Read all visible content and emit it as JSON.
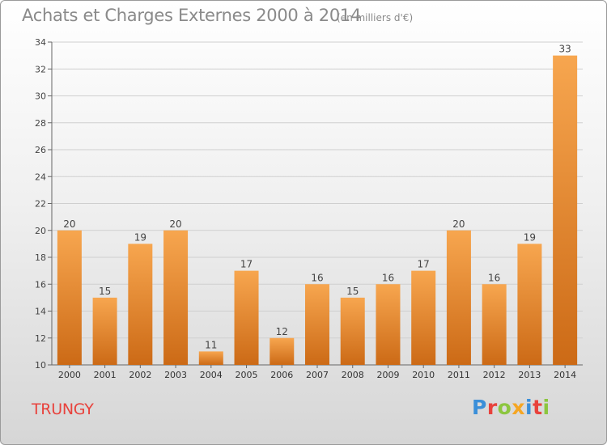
{
  "header": {
    "title": "Achats et Charges Externes 2000 à 2014",
    "subtitle": "(en milliers d'€)"
  },
  "commune": "TRUNGY",
  "logo": {
    "text": "Proxiti"
  },
  "colors": {
    "bar_top": "#f5a04a",
    "bar_bottom": "#cf6d18",
    "label": "#444444",
    "grid": "#d0d0d0"
  },
  "chart_data": {
    "type": "bar",
    "title": "Achats et Charges Externes 2000 à 2014",
    "subtitle": "(en milliers d'€)",
    "categories": [
      "2000",
      "2001",
      "2002",
      "2003",
      "2004",
      "2005",
      "2006",
      "2007",
      "2008",
      "2009",
      "2010",
      "2011",
      "2012",
      "2013",
      "2014"
    ],
    "values": [
      20,
      15,
      19,
      20,
      11,
      17,
      12,
      16,
      15,
      16,
      17,
      20,
      16,
      19,
      33
    ],
    "ylim": [
      10,
      34
    ],
    "yticks": [
      10,
      12,
      14,
      16,
      18,
      20,
      22,
      24,
      26,
      28,
      30,
      32,
      34
    ],
    "grid": true,
    "data_labels": true
  }
}
